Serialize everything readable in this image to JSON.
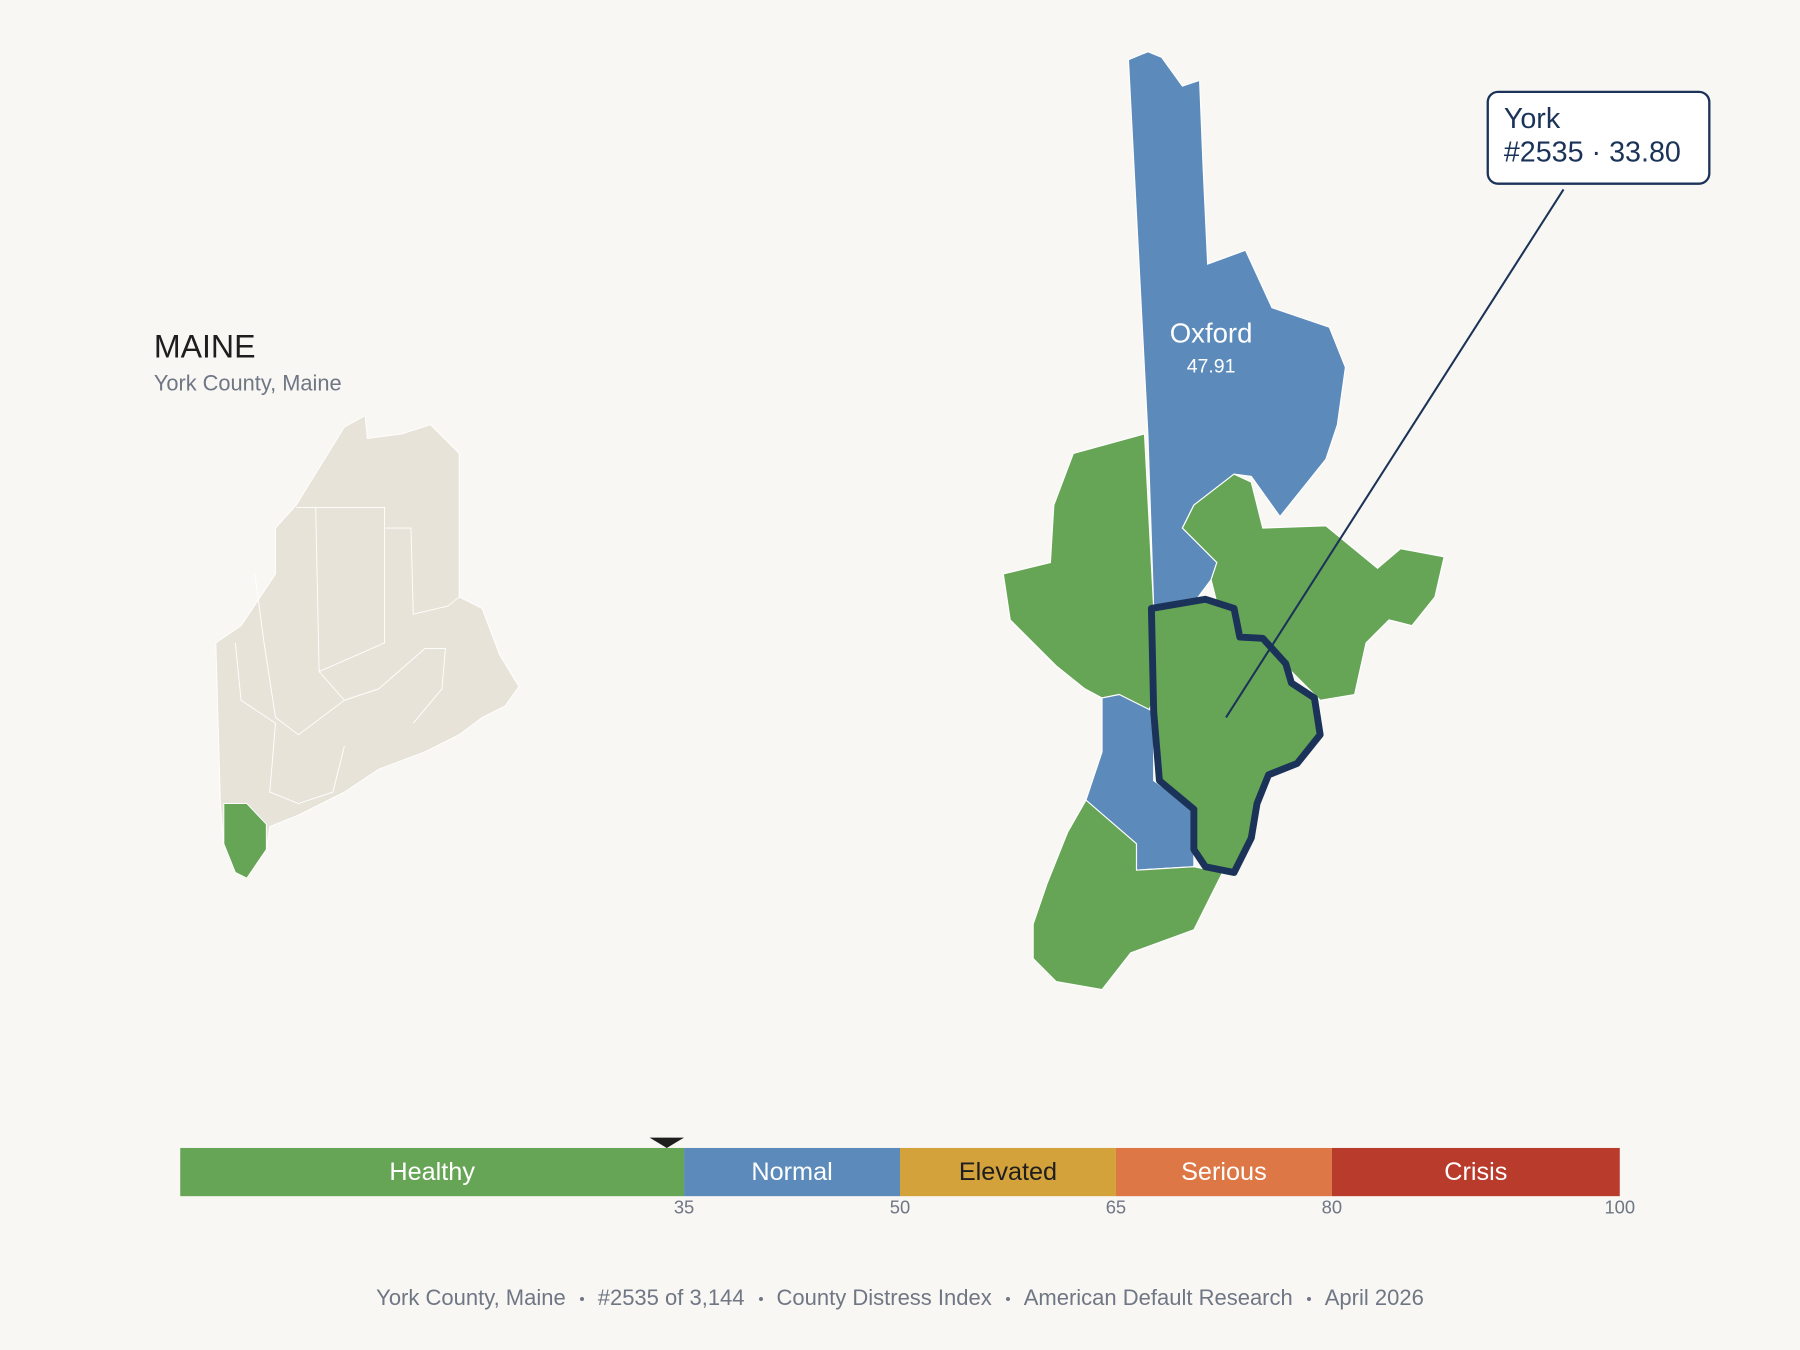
{
  "header": {
    "title": "MAINE",
    "subtitle": "York County, Maine"
  },
  "map": {
    "labels": [
      {
        "name": "Oxford",
        "value": "47.91"
      }
    ]
  },
  "callout": {
    "name": "York",
    "label": "#2535 · 33.80",
    "score": 33.8
  },
  "scale": {
    "min": 0,
    "bands": [
      {
        "label": "Healthy",
        "to": 35,
        "color": "#67a556",
        "text_color": "#ffffff"
      },
      {
        "label": "Normal",
        "to": 50,
        "color": "#5b8abb",
        "text_color": "#ffffff"
      },
      {
        "label": "Elevated",
        "to": 65,
        "color": "#d4a23a",
        "text_color": "#1e1e1e"
      },
      {
        "label": "Serious",
        "to": 80,
        "color": "#dd7745",
        "text_color": "#ffffff"
      },
      {
        "label": "Crisis",
        "to": 100,
        "color": "#b83b2b",
        "text_color": "#ffffff"
      }
    ]
  },
  "footer": {
    "items": [
      "York County, Maine",
      "#2535 of 3,144",
      "County Distress Index",
      "American Default Research",
      "April 2026"
    ]
  }
}
